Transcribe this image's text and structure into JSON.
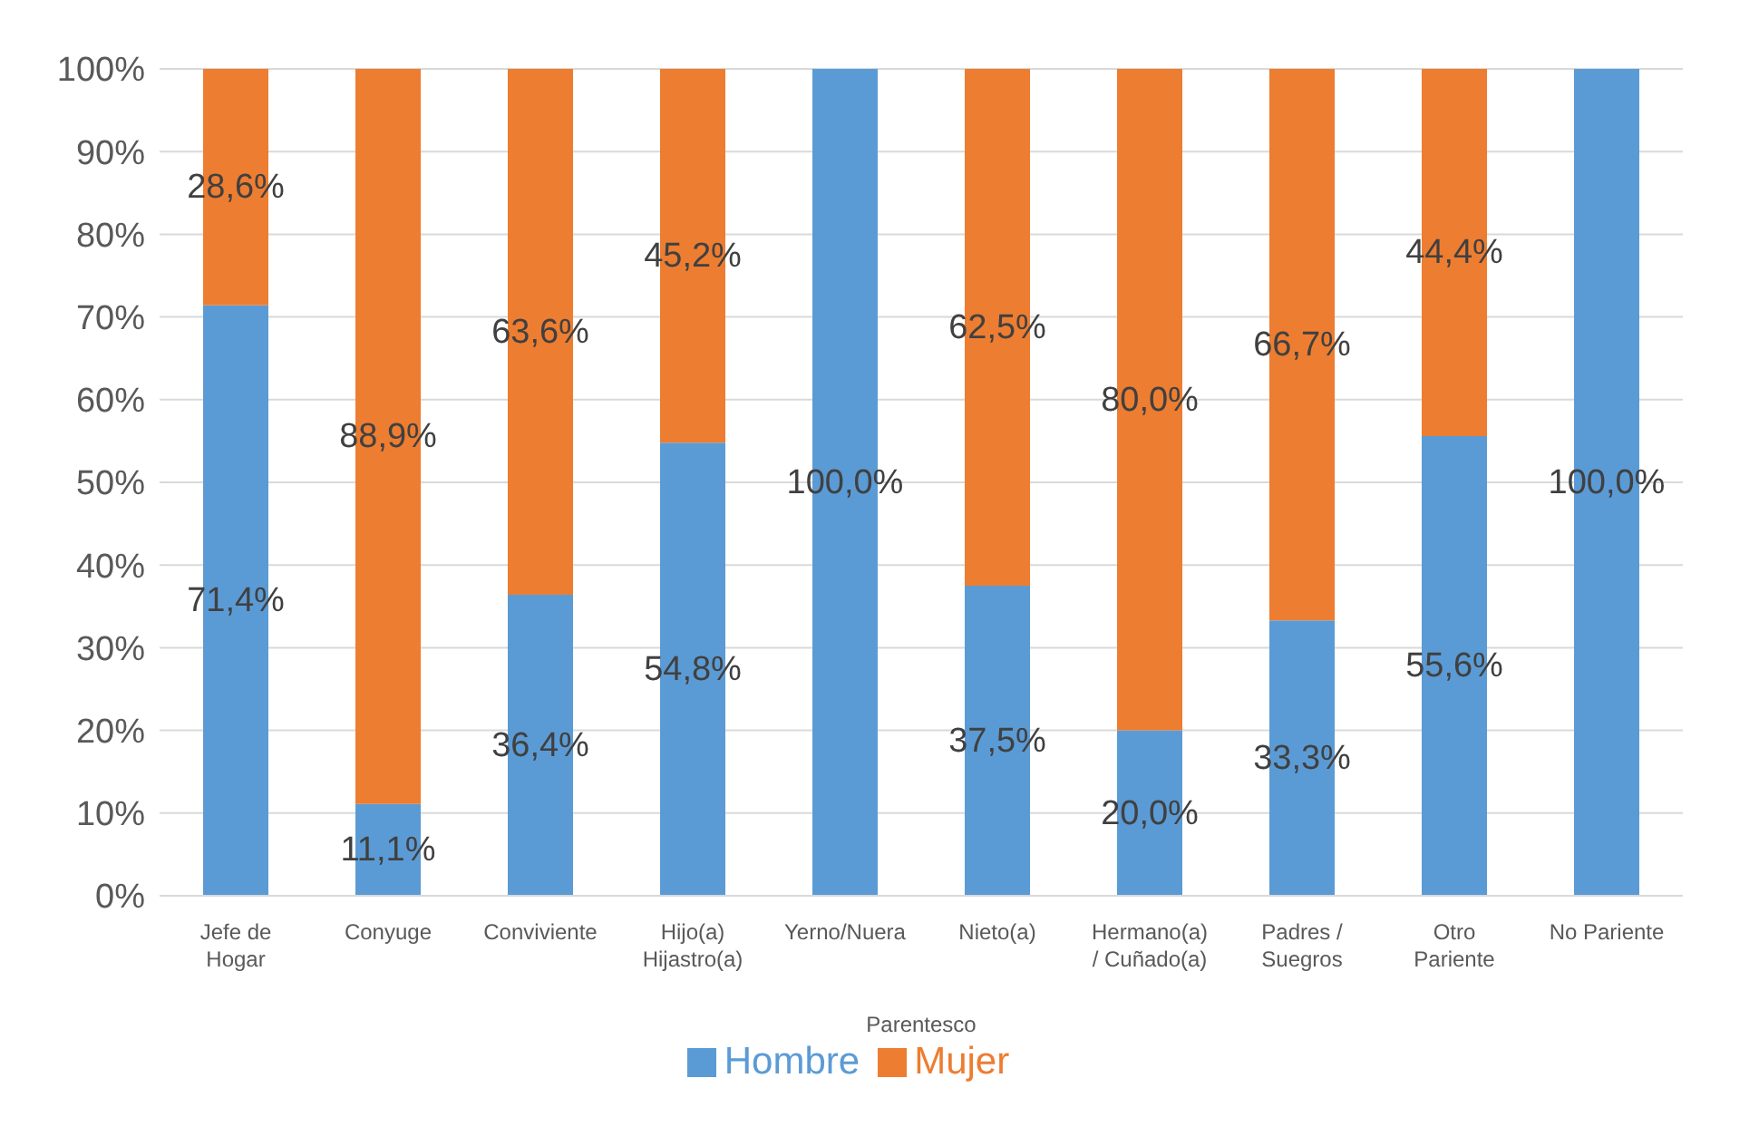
{
  "chart_data": {
    "type": "bar",
    "stacked": true,
    "xlabel": "Parentesco",
    "categories": [
      "Jefe de\nHogar",
      "Conyuge",
      "Conviviente",
      "Hijo(a)\nHijastro(a)",
      "Yerno/Nuera",
      "Nieto(a)",
      "Hermano(a)\n/ Cuñado(a)",
      "Padres /\nSuegros",
      "Otro\nPariente",
      "No Pariente"
    ],
    "series": [
      {
        "name": "Hombre",
        "color": "#5b9bd5",
        "values": [
          71.4,
          11.1,
          36.4,
          54.8,
          100,
          37.5,
          20.0,
          33.3,
          55.6,
          100
        ],
        "value_labels": [
          "71,4%",
          "11,1%",
          "36,4%",
          "54,8%",
          "100,0%",
          "37,5%",
          "20,0%",
          "33,3%",
          "55,6%",
          "100,0%"
        ]
      },
      {
        "name": "Mujer",
        "color": "#ed7d31",
        "values": [
          28.6,
          88.9,
          63.6,
          45.2,
          null,
          62.5,
          80.0,
          66.7,
          44.4,
          null
        ],
        "value_labels": [
          "28,6%",
          "88,9%",
          "63,6%",
          "45,2%",
          null,
          "62,5%",
          "80,0%",
          "66,7%",
          "44,4%",
          null
        ]
      }
    ],
    "ylim": [
      0,
      100
    ],
    "yticks": [
      {
        "value": 0,
        "label": "0%"
      },
      {
        "value": 10,
        "label": "10%"
      },
      {
        "value": 20,
        "label": "20%"
      },
      {
        "value": 30,
        "label": "30%"
      },
      {
        "value": 40,
        "label": "40%"
      },
      {
        "value": 50,
        "label": "50%"
      },
      {
        "value": 60,
        "label": "60%"
      },
      {
        "value": 70,
        "label": "70%"
      },
      {
        "value": 80,
        "label": "80%"
      },
      {
        "value": 90,
        "label": "90%"
      },
      {
        "value": 100,
        "label": "100%"
      }
    ],
    "grid": "y",
    "legend": "bottom"
  }
}
